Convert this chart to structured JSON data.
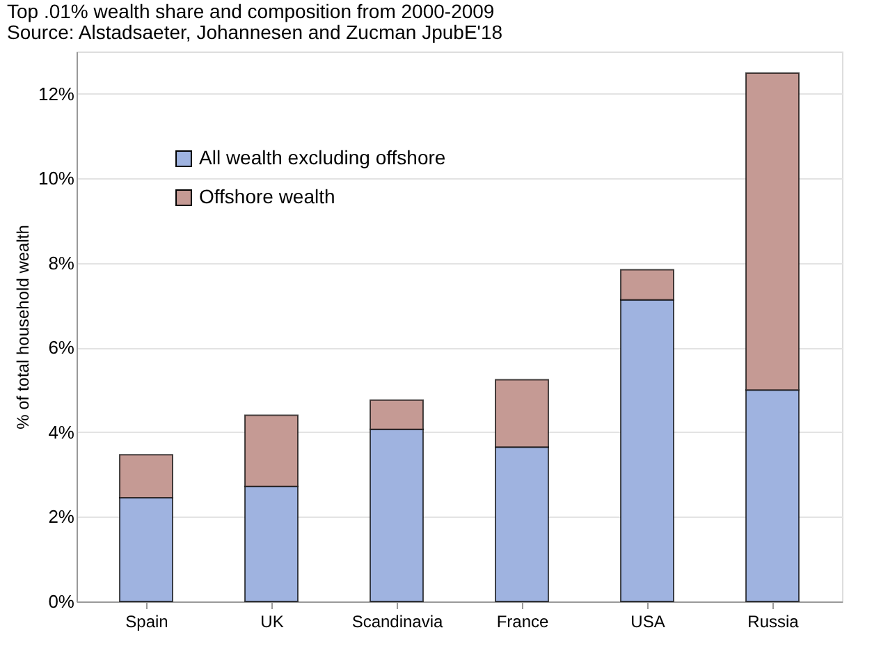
{
  "chart_data": {
    "type": "bar",
    "title": "Top .01% wealth share and composition from 2000-2009",
    "subtitle": "Source: Alstadsaeter, Johannesen and Zucman JpubE'18",
    "ylabel": "% of total household wealth",
    "categories": [
      "Spain",
      "UK",
      "Scandinavia",
      "France",
      "USA",
      "Russia"
    ],
    "stacked": true,
    "series": [
      {
        "name": "All wealth excluding offshore",
        "color": "#9fb3e0",
        "values": [
          2.45,
          2.72,
          4.07,
          3.65,
          7.13,
          5.0
        ]
      },
      {
        "name": "Offshore wealth",
        "color": "#c59a94",
        "values": [
          1.02,
          1.68,
          0.69,
          1.59,
          0.71,
          7.49
        ]
      }
    ],
    "ylim": [
      0,
      13
    ],
    "yticks": [
      {
        "value": 0,
        "label": "0%"
      },
      {
        "value": 2,
        "label": "2%"
      },
      {
        "value": 4,
        "label": "4%"
      },
      {
        "value": 6,
        "label": "6%"
      },
      {
        "value": 8,
        "label": "8%"
      },
      {
        "value": 10,
        "label": "10%"
      },
      {
        "value": 12,
        "label": "12%"
      }
    ],
    "grid": "y",
    "legend": "top left"
  }
}
